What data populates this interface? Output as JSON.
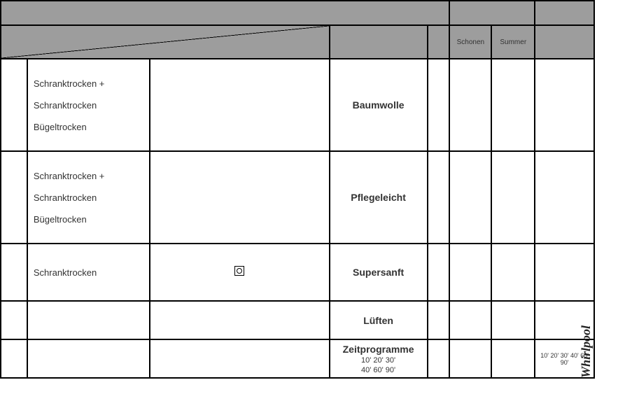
{
  "headers": {
    "schonen": "Schonen",
    "summer": "Summer"
  },
  "rows": [
    {
      "levels": [
        "Schranktrocken +",
        "Schranktrocken",
        "Bügeltrocken"
      ],
      "program": "Baumwolle",
      "symbol": false,
      "times": ""
    },
    {
      "levels": [
        "Schranktrocken +",
        "Schranktrocken",
        "Bügeltrocken"
      ],
      "program": "Pflegeleicht",
      "symbol": false,
      "times": ""
    },
    {
      "levels": [
        "Schranktrocken"
      ],
      "program": "Supersanft",
      "symbol": true,
      "times": ""
    },
    {
      "levels": [],
      "program": "Lüften",
      "symbol": false,
      "times": ""
    },
    {
      "levels": [],
      "program": "Zeitprogramme",
      "program_sub": [
        "10' 20' 30'",
        "40' 60' 90'"
      ],
      "symbol": false,
      "times": "10' 20' 30'\n40' 60' 90'"
    }
  ],
  "logo": {
    "brand": "Whirlpool",
    "tag": ""
  }
}
